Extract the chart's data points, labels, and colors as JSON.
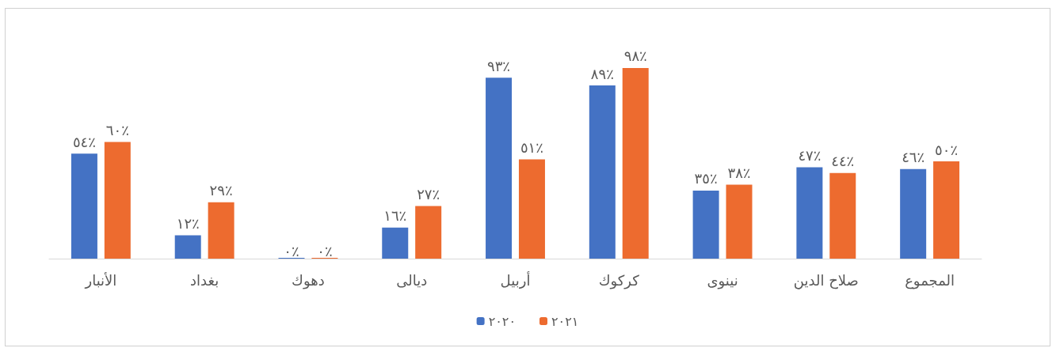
{
  "chart_data": {
    "type": "bar",
    "categories": [
      "الأنبار",
      "بغداد",
      "دهوك",
      "ديالى",
      "أربيل",
      "كركوك",
      "نينوى",
      "صلاح الدين",
      "المجموع"
    ],
    "series": [
      {
        "name": "٢٠٢٠",
        "color": "#4472c4",
        "values": [
          54,
          12,
          0,
          16,
          93,
          89,
          35,
          47,
          46
        ],
        "value_labels": [
          "٥٤٪",
          "١٢٪",
          "٠٪",
          "١٦٪",
          "٩٣٪",
          "٨٩٪",
          "٣٥٪",
          "٤٧٪",
          "٤٦٪"
        ]
      },
      {
        "name": "٢٠٢١",
        "color": "#ed6b2f",
        "values": [
          60,
          29,
          0,
          27,
          51,
          98,
          38,
          44,
          50
        ],
        "value_labels": [
          "٦٠٪",
          "٢٩٪",
          "٠٪",
          "٢٧٪",
          "٥١٪",
          "٩٨٪",
          "٣٨٪",
          "٤٤٪",
          "٥٠٪"
        ]
      }
    ],
    "legend": "bottom"
  }
}
